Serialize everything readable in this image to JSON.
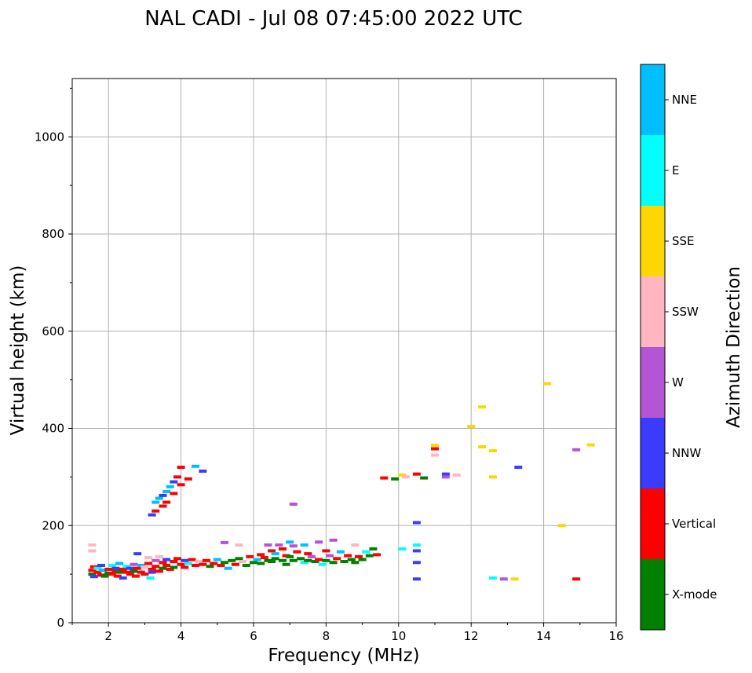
{
  "chart_data": {
    "type": "scatter",
    "title": "NAL CADI - Jul 08 07:45:00 2022 UTC",
    "xlabel": "Frequency (MHz)",
    "ylabel": "Virtual height (km)",
    "xlim": [
      1,
      16
    ],
    "ylim": [
      0,
      1120
    ],
    "xticks": [
      2,
      4,
      6,
      8,
      10,
      12,
      14,
      16
    ],
    "yticks": [
      0,
      200,
      400,
      600,
      800,
      1000
    ],
    "grid": true,
    "colorbar": {
      "label": "Azimuth Direction",
      "position": "right",
      "categories": [
        {
          "name": "X-mode",
          "color": "#008000"
        },
        {
          "name": "Vertical",
          "color": "#ff0000"
        },
        {
          "name": "NNW",
          "color": "#3b3bff"
        },
        {
          "name": "W",
          "color": "#b455d6"
        },
        {
          "name": "SSW",
          "color": "#ffb6c1"
        },
        {
          "name": "SSE",
          "color": "#ffd700"
        },
        {
          "name": "E",
          "color": "#00ffff"
        },
        {
          "name": "NNE",
          "color": "#00bfff"
        }
      ]
    },
    "points": [
      [
        1.55,
        160,
        4
      ],
      [
        1.55,
        148,
        4
      ],
      [
        1.55,
        108,
        1
      ],
      [
        1.55,
        100,
        0
      ],
      [
        1.6,
        115,
        1
      ],
      [
        1.6,
        95,
        2
      ],
      [
        1.7,
        112,
        6
      ],
      [
        1.7,
        104,
        1
      ],
      [
        1.8,
        118,
        2
      ],
      [
        1.8,
        98,
        1
      ],
      [
        1.85,
        108,
        7
      ],
      [
        1.9,
        96,
        0
      ],
      [
        2.0,
        110,
        1
      ],
      [
        2.0,
        102,
        0
      ],
      [
        2.1,
        118,
        6
      ],
      [
        2.1,
        100,
        1
      ],
      [
        2.2,
        112,
        2
      ],
      [
        2.2,
        106,
        1
      ],
      [
        2.25,
        96,
        1
      ],
      [
        2.3,
        122,
        7
      ],
      [
        2.3,
        104,
        0
      ],
      [
        2.4,
        110,
        1
      ],
      [
        2.4,
        92,
        2
      ],
      [
        2.5,
        116,
        6
      ],
      [
        2.5,
        104,
        1
      ],
      [
        2.6,
        112,
        2
      ],
      [
        2.6,
        100,
        1
      ],
      [
        2.7,
        120,
        3
      ],
      [
        2.7,
        106,
        0
      ],
      [
        2.75,
        96,
        1
      ],
      [
        2.8,
        142,
        2
      ],
      [
        2.8,
        112,
        1
      ],
      [
        2.9,
        118,
        7
      ],
      [
        2.9,
        104,
        1
      ],
      [
        3.0,
        114,
        4
      ],
      [
        3.0,
        100,
        1
      ],
      [
        3.1,
        134,
        4
      ],
      [
        3.1,
        122,
        1
      ],
      [
        3.15,
        92,
        6
      ],
      [
        3.2,
        110,
        1
      ],
      [
        3.2,
        104,
        2
      ],
      [
        3.3,
        128,
        3
      ],
      [
        3.3,
        116,
        1
      ],
      [
        3.4,
        136,
        4
      ],
      [
        3.4,
        106,
        1
      ],
      [
        3.5,
        124,
        1
      ],
      [
        3.5,
        112,
        0
      ],
      [
        3.6,
        130,
        2
      ],
      [
        3.6,
        118,
        1
      ],
      [
        3.7,
        110,
        1
      ],
      [
        3.8,
        126,
        1
      ],
      [
        3.8,
        114,
        0
      ],
      [
        3.9,
        132,
        1
      ],
      [
        4.0,
        120,
        1
      ],
      [
        4.1,
        128,
        2
      ],
      [
        4.1,
        114,
        1
      ],
      [
        4.2,
        122,
        6
      ],
      [
        4.3,
        130,
        1
      ],
      [
        4.4,
        118,
        1
      ],
      [
        4.5,
        126,
        4
      ],
      [
        4.6,
        120,
        1
      ],
      [
        4.7,
        128,
        1
      ],
      [
        4.8,
        116,
        0
      ],
      [
        4.9,
        122,
        1
      ],
      [
        5.0,
        130,
        7
      ],
      [
        5.1,
        118,
        1
      ],
      [
        5.2,
        124,
        0
      ],
      [
        5.3,
        112,
        7
      ],
      [
        5.4,
        128,
        0
      ],
      [
        5.5,
        120,
        1
      ],
      [
        5.6,
        132,
        0
      ],
      [
        5.7,
        126,
        4
      ],
      [
        5.8,
        118,
        0
      ],
      [
        5.9,
        136,
        1
      ],
      [
        6.0,
        124,
        0
      ],
      [
        6.1,
        130,
        7
      ],
      [
        6.2,
        140,
        1
      ],
      [
        6.2,
        122,
        0
      ],
      [
        6.3,
        134,
        1
      ],
      [
        6.4,
        128,
        0
      ],
      [
        6.4,
        160,
        3
      ],
      [
        6.5,
        148,
        1
      ],
      [
        6.5,
        126,
        0
      ],
      [
        6.6,
        142,
        7
      ],
      [
        6.6,
        132,
        0
      ],
      [
        6.7,
        160,
        3
      ],
      [
        6.8,
        152,
        1
      ],
      [
        6.8,
        128,
        0
      ],
      [
        6.9,
        138,
        1
      ],
      [
        6.9,
        120,
        0
      ],
      [
        7.0,
        166,
        7
      ],
      [
        7.0,
        136,
        0
      ],
      [
        7.1,
        158,
        3
      ],
      [
        7.1,
        128,
        0
      ],
      [
        7.2,
        146,
        1
      ],
      [
        7.3,
        132,
        0
      ],
      [
        7.4,
        160,
        7
      ],
      [
        7.4,
        124,
        6
      ],
      [
        7.5,
        142,
        1
      ],
      [
        7.5,
        128,
        0
      ],
      [
        7.6,
        136,
        3
      ],
      [
        7.7,
        126,
        0
      ],
      [
        7.8,
        166,
        3
      ],
      [
        7.8,
        130,
        1
      ],
      [
        7.9,
        120,
        6
      ],
      [
        8.0,
        148,
        1
      ],
      [
        8.0,
        128,
        0
      ],
      [
        8.1,
        138,
        3
      ],
      [
        8.2,
        170,
        3
      ],
      [
        8.2,
        124,
        0
      ],
      [
        8.3,
        132,
        1
      ],
      [
        8.4,
        146,
        7
      ],
      [
        8.5,
        126,
        0
      ],
      [
        8.6,
        138,
        1
      ],
      [
        8.7,
        130,
        0
      ],
      [
        8.8,
        160,
        4
      ],
      [
        8.8,
        124,
        0
      ],
      [
        8.9,
        136,
        1
      ],
      [
        9.0,
        130,
        0
      ],
      [
        9.1,
        146,
        6
      ],
      [
        9.2,
        138,
        0
      ],
      [
        9.3,
        152,
        0
      ],
      [
        9.4,
        140,
        1
      ],
      [
        3.2,
        222,
        2
      ],
      [
        3.3,
        230,
        1
      ],
      [
        3.3,
        248,
        7
      ],
      [
        3.4,
        256,
        7
      ],
      [
        3.5,
        240,
        1
      ],
      [
        3.5,
        262,
        2
      ],
      [
        3.6,
        270,
        7
      ],
      [
        3.6,
        248,
        1
      ],
      [
        3.7,
        280,
        7
      ],
      [
        3.8,
        266,
        1
      ],
      [
        3.8,
        290,
        2
      ],
      [
        3.9,
        300,
        1
      ],
      [
        4.0,
        284,
        1
      ],
      [
        4.0,
        320,
        1
      ],
      [
        4.2,
        296,
        1
      ],
      [
        4.4,
        322,
        7
      ],
      [
        4.6,
        312,
        2
      ],
      [
        5.2,
        165,
        3
      ],
      [
        5.6,
        160,
        4
      ],
      [
        7.1,
        244,
        3
      ],
      [
        9.6,
        298,
        1
      ],
      [
        9.9,
        296,
        0
      ],
      [
        10.1,
        304,
        5
      ],
      [
        10.2,
        300,
        4
      ],
      [
        10.5,
        306,
        1
      ],
      [
        10.7,
        298,
        0
      ],
      [
        10.5,
        206,
        2
      ],
      [
        10.5,
        148,
        2
      ],
      [
        10.5,
        124,
        2
      ],
      [
        10.5,
        90,
        2
      ],
      [
        10.5,
        160,
        6
      ],
      [
        10.1,
        152,
        6
      ],
      [
        11.0,
        365,
        5
      ],
      [
        11.0,
        358,
        1
      ],
      [
        11.0,
        345,
        4
      ],
      [
        11.3,
        306,
        2
      ],
      [
        11.3,
        300,
        3
      ],
      [
        11.6,
        304,
        4
      ],
      [
        12.0,
        404,
        5
      ],
      [
        12.3,
        444,
        5
      ],
      [
        12.3,
        362,
        5
      ],
      [
        12.6,
        354,
        5
      ],
      [
        12.6,
        300,
        5
      ],
      [
        12.6,
        92,
        6
      ],
      [
        12.9,
        90,
        3
      ],
      [
        13.2,
        90,
        5
      ],
      [
        13.3,
        320,
        2
      ],
      [
        14.1,
        492,
        5
      ],
      [
        14.5,
        200,
        5
      ],
      [
        14.9,
        356,
        3
      ],
      [
        15.3,
        366,
        5
      ],
      [
        14.9,
        90,
        1
      ]
    ]
  }
}
